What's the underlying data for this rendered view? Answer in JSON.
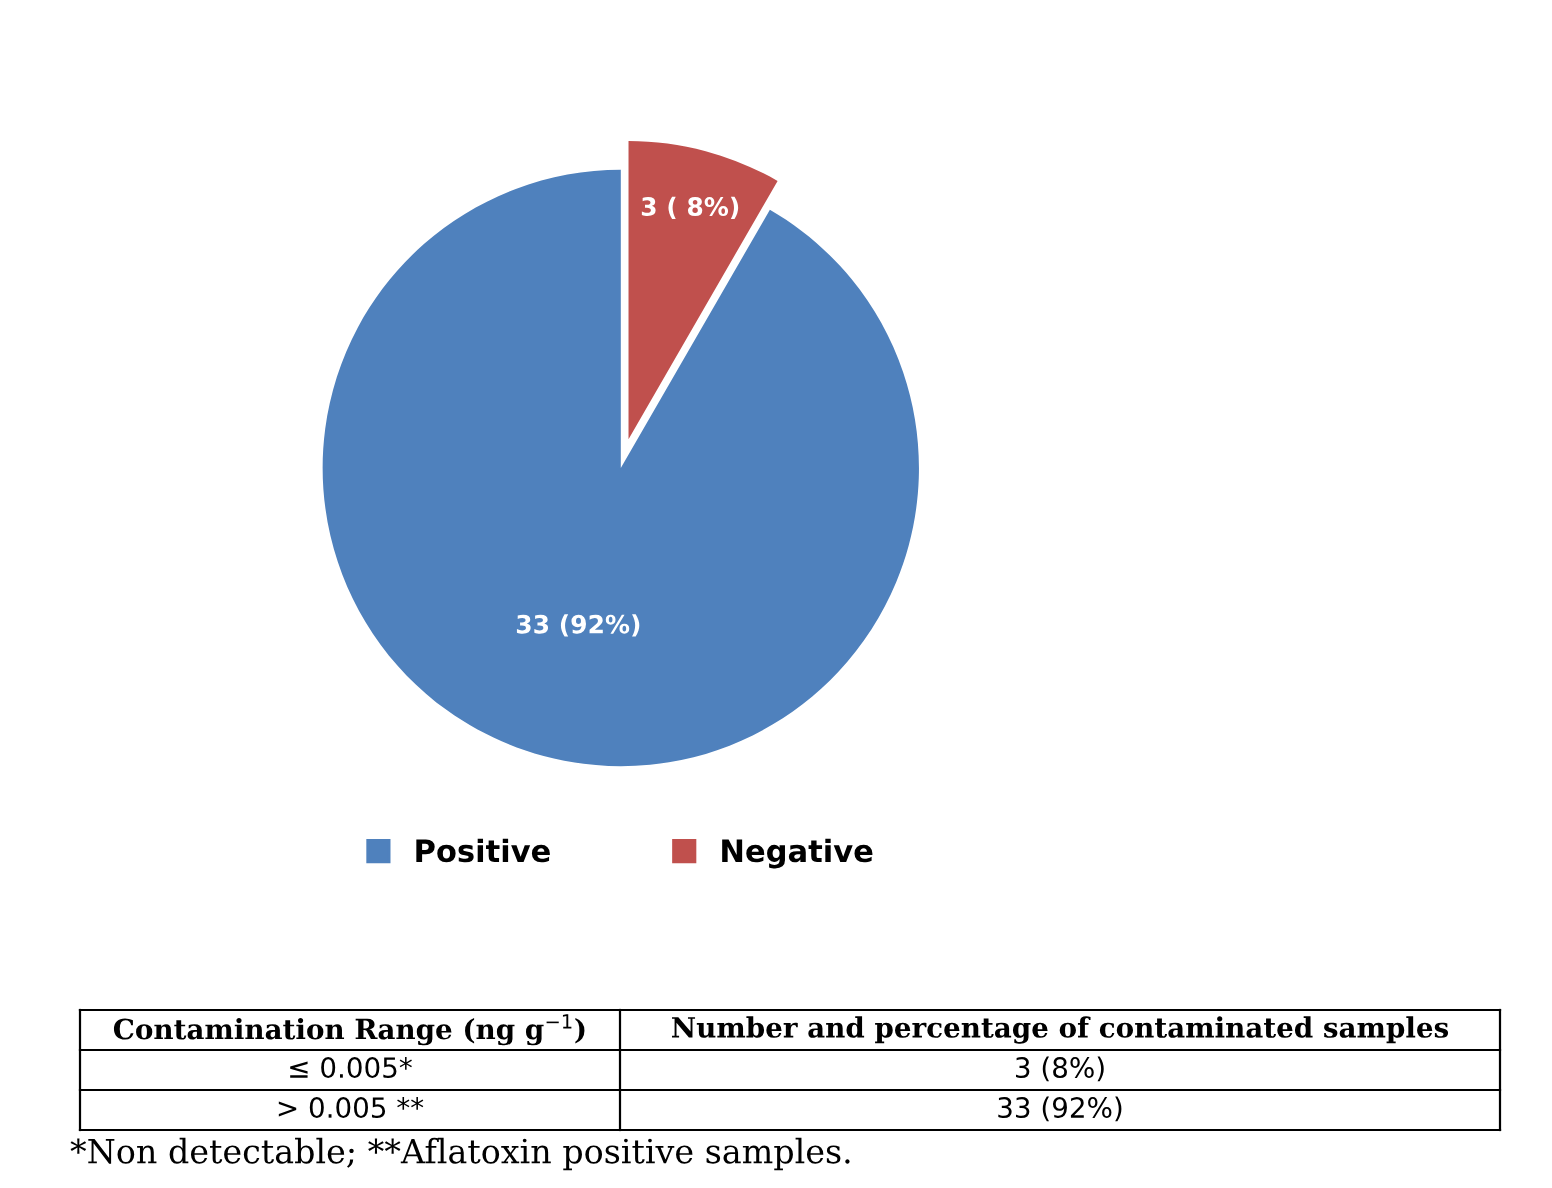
{
  "chart_data": {
    "type": "pie",
    "categories": [
      "Positive",
      "Negative"
    ],
    "values": [
      33,
      3
    ],
    "colors": [
      "#4f81bd",
      "#c0504d"
    ],
    "value_labels": [
      "33 (92%)",
      "3 ( 8%)"
    ],
    "legend": "bottom",
    "annotations": [
      "Contamination Range (ng g$^{−1}$)",
      "Number and percentage of contaminated samples",
      "≤ 0.005*",
      "3 (8%)",
      "> 0.005 **",
      "33 (92%)",
      "*Non detectable; **Aflatoxin positive samples."
    ]
  }
}
